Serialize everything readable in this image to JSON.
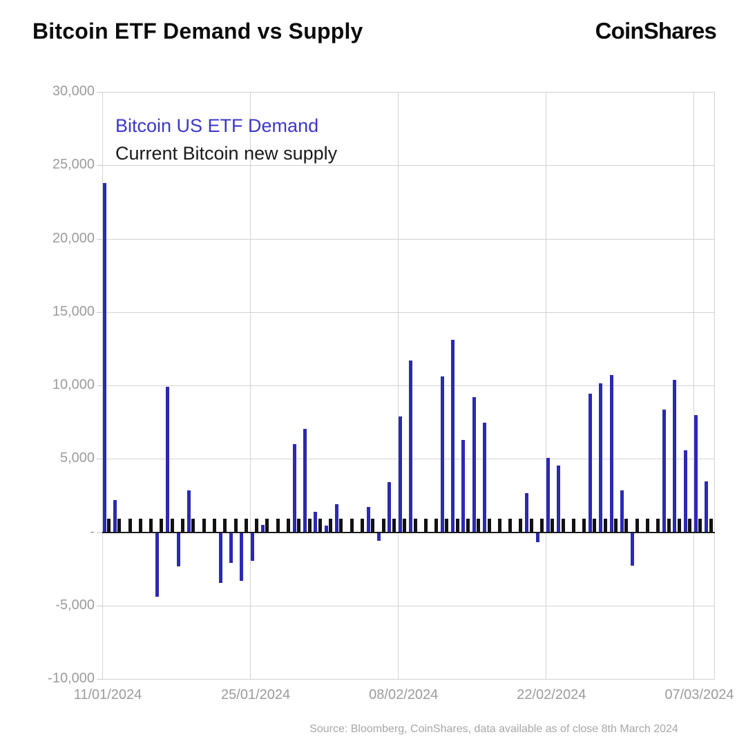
{
  "header": {
    "title": "Bitcoin ETF Demand vs Supply",
    "logo": "CoinShares"
  },
  "legend": {
    "demand_label": "Bitcoin US ETF Demand",
    "supply_label": "Current Bitcoin new supply"
  },
  "footer": {
    "source": "Source: Bloomberg, CoinShares, data available as of close 8th March 2024"
  },
  "colors": {
    "demand_bar": "#2c29b2",
    "legend_demand_text": "#3c37c8",
    "supply_bar": "#121212",
    "gridline": "#d2d2d2",
    "zero_line": "#1c1c1c",
    "axis_text": "#9b9b9b"
  },
  "chart_data": {
    "type": "bar",
    "title": "Bitcoin ETF Demand vs Supply",
    "xlabel": "",
    "ylabel": "",
    "ylim": [
      -10000,
      30000
    ],
    "y_tick_step": 5000,
    "grid": true,
    "legend_position": "top-left-inside",
    "categories": [
      "11/01/2024",
      "12/01/2024",
      "13/01/2024",
      "14/01/2024",
      "15/01/2024",
      "16/01/2024",
      "17/01/2024",
      "18/01/2024",
      "19/01/2024",
      "20/01/2024",
      "21/01/2024",
      "22/01/2024",
      "23/01/2024",
      "24/01/2024",
      "25/01/2024",
      "26/01/2024",
      "27/01/2024",
      "28/01/2024",
      "29/01/2024",
      "30/01/2024",
      "31/01/2024",
      "01/02/2024",
      "02/02/2024",
      "03/02/2024",
      "04/02/2024",
      "05/02/2024",
      "06/02/2024",
      "07/02/2024",
      "08/02/2024",
      "09/02/2024",
      "10/02/2024",
      "11/02/2024",
      "12/02/2024",
      "13/02/2024",
      "14/02/2024",
      "15/02/2024",
      "16/02/2024",
      "17/02/2024",
      "18/02/2024",
      "19/02/2024",
      "20/02/2024",
      "21/02/2024",
      "22/02/2024",
      "23/02/2024",
      "24/02/2024",
      "25/02/2024",
      "26/02/2024",
      "27/02/2024",
      "28/02/2024",
      "29/02/2024",
      "01/03/2024",
      "02/03/2024",
      "03/03/2024",
      "04/03/2024",
      "05/03/2024",
      "06/03/2024",
      "07/03/2024",
      "08/03/2024"
    ],
    "series": [
      {
        "name": "Bitcoin US ETF Demand",
        "color": "#2c29b2",
        "values": [
          23800,
          2200,
          0,
          0,
          0,
          -4400,
          9900,
          -2350,
          2850,
          0,
          0,
          -3450,
          -2100,
          -3300,
          -1950,
          500,
          0,
          0,
          6000,
          7050,
          1400,
          450,
          1900,
          0,
          0,
          1700,
          -600,
          3400,
          7900,
          11700,
          0,
          0,
          10600,
          13100,
          6300,
          9200,
          7450,
          0,
          0,
          0,
          2650,
          -700,
          5050,
          4550,
          0,
          0,
          9450,
          10150,
          10700,
          2850,
          -2300,
          0,
          0,
          8350,
          10400,
          5600,
          8000,
          3450
        ]
      },
      {
        "name": "Current Bitcoin new supply",
        "color": "#121212",
        "values": [
          900,
          900,
          900,
          900,
          900,
          900,
          900,
          900,
          900,
          900,
          900,
          900,
          900,
          900,
          900,
          900,
          900,
          900,
          900,
          900,
          900,
          900,
          900,
          900,
          900,
          900,
          900,
          900,
          900,
          900,
          900,
          900,
          900,
          900,
          900,
          900,
          900,
          900,
          900,
          900,
          900,
          900,
          900,
          900,
          900,
          900,
          900,
          900,
          900,
          900,
          900,
          900,
          900,
          900,
          900,
          900,
          900,
          900
        ]
      }
    ],
    "y_tick_labels": [
      "30,000",
      "25,000",
      "20,000",
      "15,000",
      "10,000",
      "5,000",
      "-",
      "-5,000",
      "-10,000"
    ],
    "x_tick_labels": [
      "11/01/2024",
      "25/01/2024",
      "08/02/2024",
      "22/02/2024",
      "07/03/2024"
    ],
    "x_tick_day_indices": [
      0,
      14,
      28,
      42,
      56
    ]
  }
}
